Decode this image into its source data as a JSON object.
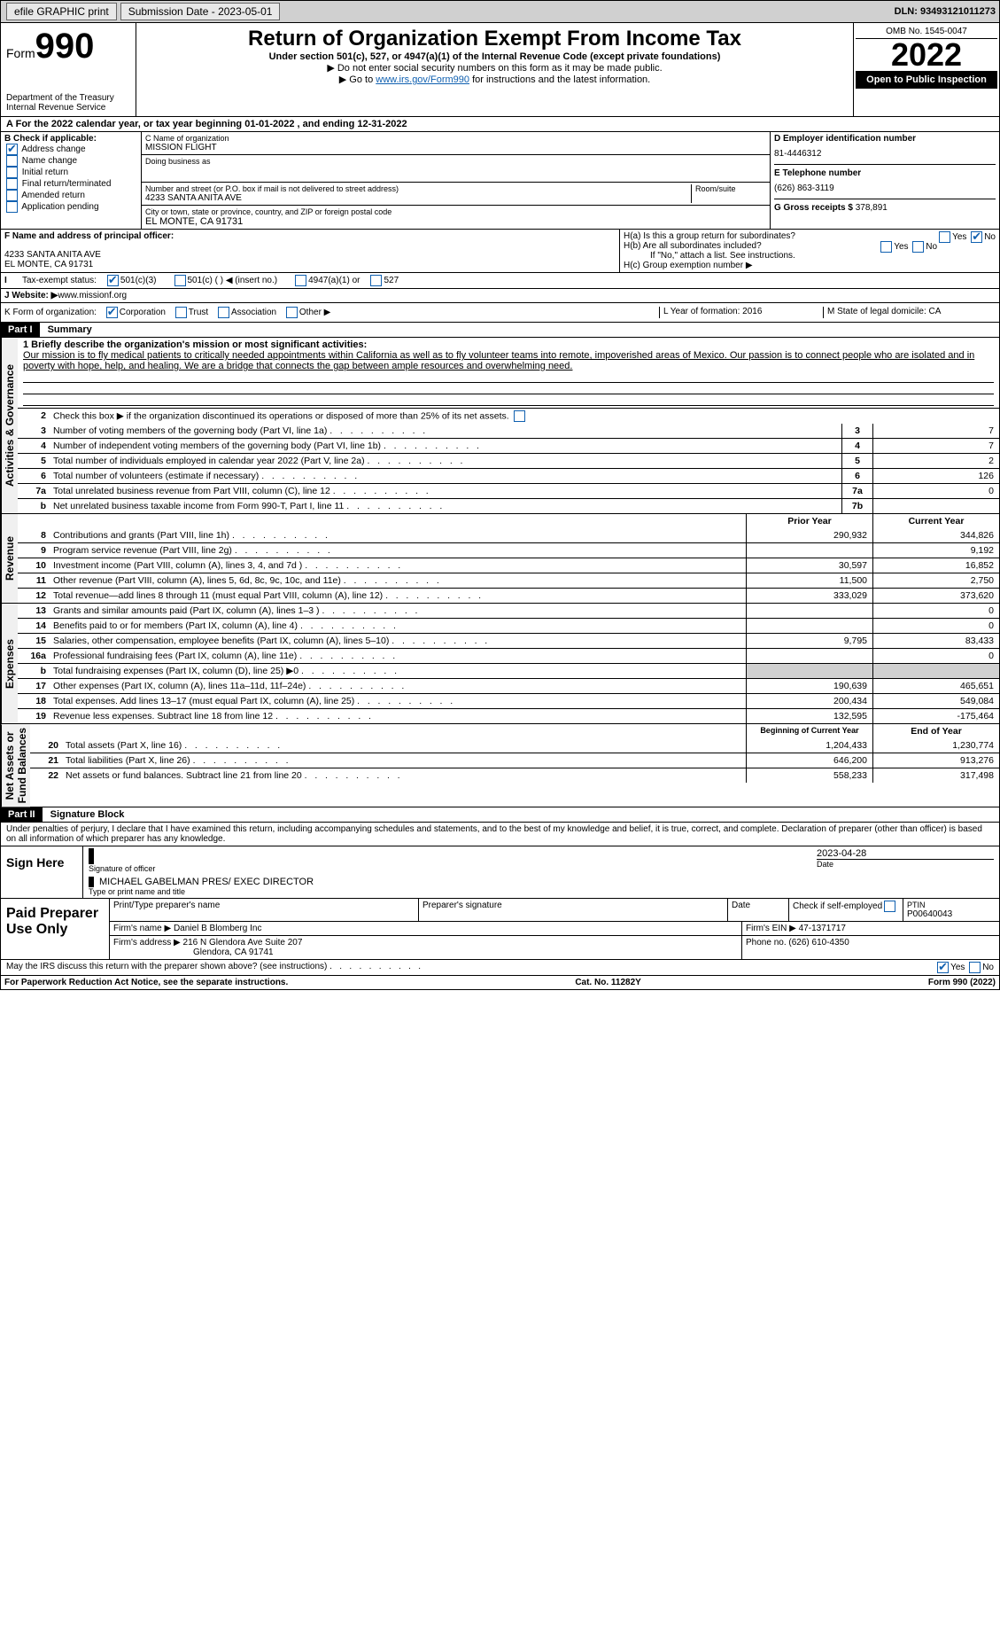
{
  "topbar": {
    "efile": "efile GRAPHIC print",
    "subdate_lbl": "Submission Date - 2023-05-01",
    "dln": "DLN: 93493121011273"
  },
  "header": {
    "form_small": "Form",
    "form_big": "990",
    "title": "Return of Organization Exempt From Income Tax",
    "sub": "Under section 501(c), 527, or 4947(a)(1) of the Internal Revenue Code (except private foundations)",
    "sub2": "▶ Do not enter social security numbers on this form as it may be made public.",
    "sub3_pre": "▶ Go to ",
    "sub3_link": "www.irs.gov/Form990",
    "sub3_post": " for instructions and the latest information.",
    "dept": "Department of the Treasury\nInternal Revenue Service",
    "omb": "OMB No. 1545-0047",
    "year": "2022",
    "inspect": "Open to Public Inspection"
  },
  "A": {
    "line": "For the 2022 calendar year, or tax year beginning 01-01-2022    , and ending 12-31-2022"
  },
  "B": {
    "hdr": "B Check if applicable:",
    "items": [
      "Address change",
      "Name change",
      "Initial return",
      "Final return/terminated",
      "Amended return",
      "Application pending"
    ],
    "checked": [
      true,
      false,
      false,
      false,
      false,
      false
    ]
  },
  "C": {
    "name_lbl": "C Name of organization",
    "name": "MISSION FLIGHT",
    "dba_lbl": "Doing business as",
    "dba": "",
    "addr_lbl": "Number and street (or P.O. box if mail is not delivered to street address)",
    "room_lbl": "Room/suite",
    "addr": "4233 SANTA ANITA AVE",
    "city_lbl": "City or town, state or province, country, and ZIP or foreign postal code",
    "city": "EL MONTE, CA  91731"
  },
  "D": {
    "lbl": "D Employer identification number",
    "val": "81-4446312"
  },
  "E": {
    "lbl": "E Telephone number",
    "val": "(626) 863-3119"
  },
  "G": {
    "lbl": "G Gross receipts $",
    "val": "378,891"
  },
  "F": {
    "lbl": "F  Name and address of principal officer:",
    "addr1": "4233 SANTA ANITA AVE",
    "addr2": "EL MONTE, CA  91731"
  },
  "H": {
    "a": "H(a)  Is this a group return for subordinates?",
    "a_yes": "Yes",
    "a_no": "No",
    "b": "H(b)  Are all subordinates included?",
    "b_yes": "Yes",
    "b_no": "No",
    "b2": "If \"No,\" attach a list. See instructions.",
    "c": "H(c)  Group exemption number ▶"
  },
  "I": {
    "lbl": "Tax-exempt status:",
    "o1": "501(c)(3)",
    "o2": "501(c) (  ) ◀ (insert no.)",
    "o3": "4947(a)(1) or",
    "o4": "527"
  },
  "J": {
    "lbl": "J   Website: ▶",
    "val": "  www.missionf.org"
  },
  "K": {
    "lbl": "K Form of organization:",
    "o1": "Corporation",
    "o2": "Trust",
    "o3": "Association",
    "o4": "Other ▶"
  },
  "L": {
    "lbl": "L Year of formation:",
    "val": "2016"
  },
  "M": {
    "lbl": "M State of legal domicile:",
    "val": "CA"
  },
  "partI": {
    "hdr": "Part I",
    "title": "Summary"
  },
  "summary": {
    "l1_lbl": "1  Briefly describe the organization's mission or most significant activities:",
    "l1_txt": "Our mission is to fly medical patients to critically needed appointments within California as well as to fly volunteer teams into remote, impoverished areas of Mexico. Our passion is to connect people who are isolated and in poverty with hope, help, and healing. We are a bridge that connects the gap between ample resources and overwhelming need.",
    "l2": "Check this box ▶        if the organization discontinued its operations or disposed of more than 25% of its net assets.",
    "rows": [
      {
        "n": "3",
        "t": "Number of voting members of the governing body (Part VI, line 1a)",
        "box": "3",
        "v": "7"
      },
      {
        "n": "4",
        "t": "Number of independent voting members of the governing body (Part VI, line 1b)",
        "box": "4",
        "v": "7"
      },
      {
        "n": "5",
        "t": "Total number of individuals employed in calendar year 2022 (Part V, line 2a)",
        "box": "5",
        "v": "2"
      },
      {
        "n": "6",
        "t": "Total number of volunteers (estimate if necessary)",
        "box": "6",
        "v": "126"
      },
      {
        "n": "7a",
        "t": "Total unrelated business revenue from Part VIII, column (C), line 12",
        "box": "7a",
        "v": "0"
      },
      {
        "n": "b",
        "t": "Net unrelated business taxable income from Form 990-T, Part I, line 11",
        "box": "7b",
        "v": ""
      }
    ],
    "col_prior": "Prior Year",
    "col_curr": "Current Year",
    "revenue": [
      {
        "n": "8",
        "t": "Contributions and grants (Part VIII, line 1h)",
        "p": "290,932",
        "c": "344,826"
      },
      {
        "n": "9",
        "t": "Program service revenue (Part VIII, line 2g)",
        "p": "",
        "c": "9,192"
      },
      {
        "n": "10",
        "t": "Investment income (Part VIII, column (A), lines 3, 4, and 7d )",
        "p": "30,597",
        "c": "16,852"
      },
      {
        "n": "11",
        "t": "Other revenue (Part VIII, column (A), lines 5, 6d, 8c, 9c, 10c, and 11e)",
        "p": "11,500",
        "c": "2,750"
      },
      {
        "n": "12",
        "t": "Total revenue—add lines 8 through 11 (must equal Part VIII, column (A), line 12)",
        "p": "333,029",
        "c": "373,620"
      }
    ],
    "expenses": [
      {
        "n": "13",
        "t": "Grants and similar amounts paid (Part IX, column (A), lines 1–3 )",
        "p": "",
        "c": "0"
      },
      {
        "n": "14",
        "t": "Benefits paid to or for members (Part IX, column (A), line 4)",
        "p": "",
        "c": "0"
      },
      {
        "n": "15",
        "t": "Salaries, other compensation, employee benefits (Part IX, column (A), lines 5–10)",
        "p": "9,795",
        "c": "83,433"
      },
      {
        "n": "16a",
        "t": "Professional fundraising fees (Part IX, column (A), line 11e)",
        "p": "",
        "c": "0"
      },
      {
        "n": "b",
        "t": "Total fundraising expenses (Part IX, column (D), line 25) ▶0",
        "p": "",
        "c": "",
        "shade": true
      },
      {
        "n": "17",
        "t": "Other expenses (Part IX, column (A), lines 11a–11d, 11f–24e)",
        "p": "190,639",
        "c": "465,651"
      },
      {
        "n": "18",
        "t": "Total expenses. Add lines 13–17 (must equal Part IX, column (A), line 25)",
        "p": "200,434",
        "c": "549,084"
      },
      {
        "n": "19",
        "t": "Revenue less expenses. Subtract line 18 from line 12",
        "p": "132,595",
        "c": "-175,464"
      }
    ],
    "col_begin": "Beginning of Current Year",
    "col_end": "End of Year",
    "netassets": [
      {
        "n": "20",
        "t": "Total assets (Part X, line 16)",
        "p": "1,204,433",
        "c": "1,230,774"
      },
      {
        "n": "21",
        "t": "Total liabilities (Part X, line 26)",
        "p": "646,200",
        "c": "913,276"
      },
      {
        "n": "22",
        "t": "Net assets or fund balances. Subtract line 21 from line 20",
        "p": "558,233",
        "c": "317,498"
      }
    ],
    "tab1": "Activities & Governance",
    "tab2": "Revenue",
    "tab3": "Expenses",
    "tab4": "Net Assets or\nFund Balances"
  },
  "partII": {
    "hdr": "Part II",
    "title": "Signature Block",
    "decl": "Under penalties of perjury, I declare that I have examined this return, including accompanying schedules and statements, and to the best of my knowledge and belief, it is true, correct, and complete. Declaration of preparer (other than officer) is based on all information of which preparer has any knowledge."
  },
  "sign": {
    "here": "Sign Here",
    "sig_lbl": "Signature of officer",
    "date_lbl": "Date",
    "date": "2023-04-28",
    "name": "MICHAEL GABELMAN  PRES/ EXEC DIRECTOR",
    "name_lbl": "Type or print name and title"
  },
  "paid": {
    "title": "Paid Preparer Use Only",
    "h1": "Print/Type preparer's name",
    "h2": "Preparer's signature",
    "h3": "Date",
    "h4": "Check        if self-employed",
    "h5": "PTIN",
    "ptin": "P00640043",
    "firm_lbl": "Firm's name   ▶",
    "firm": "Daniel B Blomberg Inc",
    "ein_lbl": "Firm's EIN ▶",
    "ein": "47-1371717",
    "addr_lbl": "Firm's address ▶",
    "addr1": "216 N Glendora Ave Suite 207",
    "addr2": "Glendora, CA  91741",
    "phone_lbl": "Phone no.",
    "phone": "(626) 610-4350",
    "may": "May the IRS discuss this return with the preparer shown above? (see instructions)",
    "yes": "Yes",
    "no": "No"
  },
  "foot": {
    "l": "For Paperwork Reduction Act Notice, see the separate instructions.",
    "m": "Cat. No. 11282Y",
    "r": "Form 990 (2022)"
  }
}
